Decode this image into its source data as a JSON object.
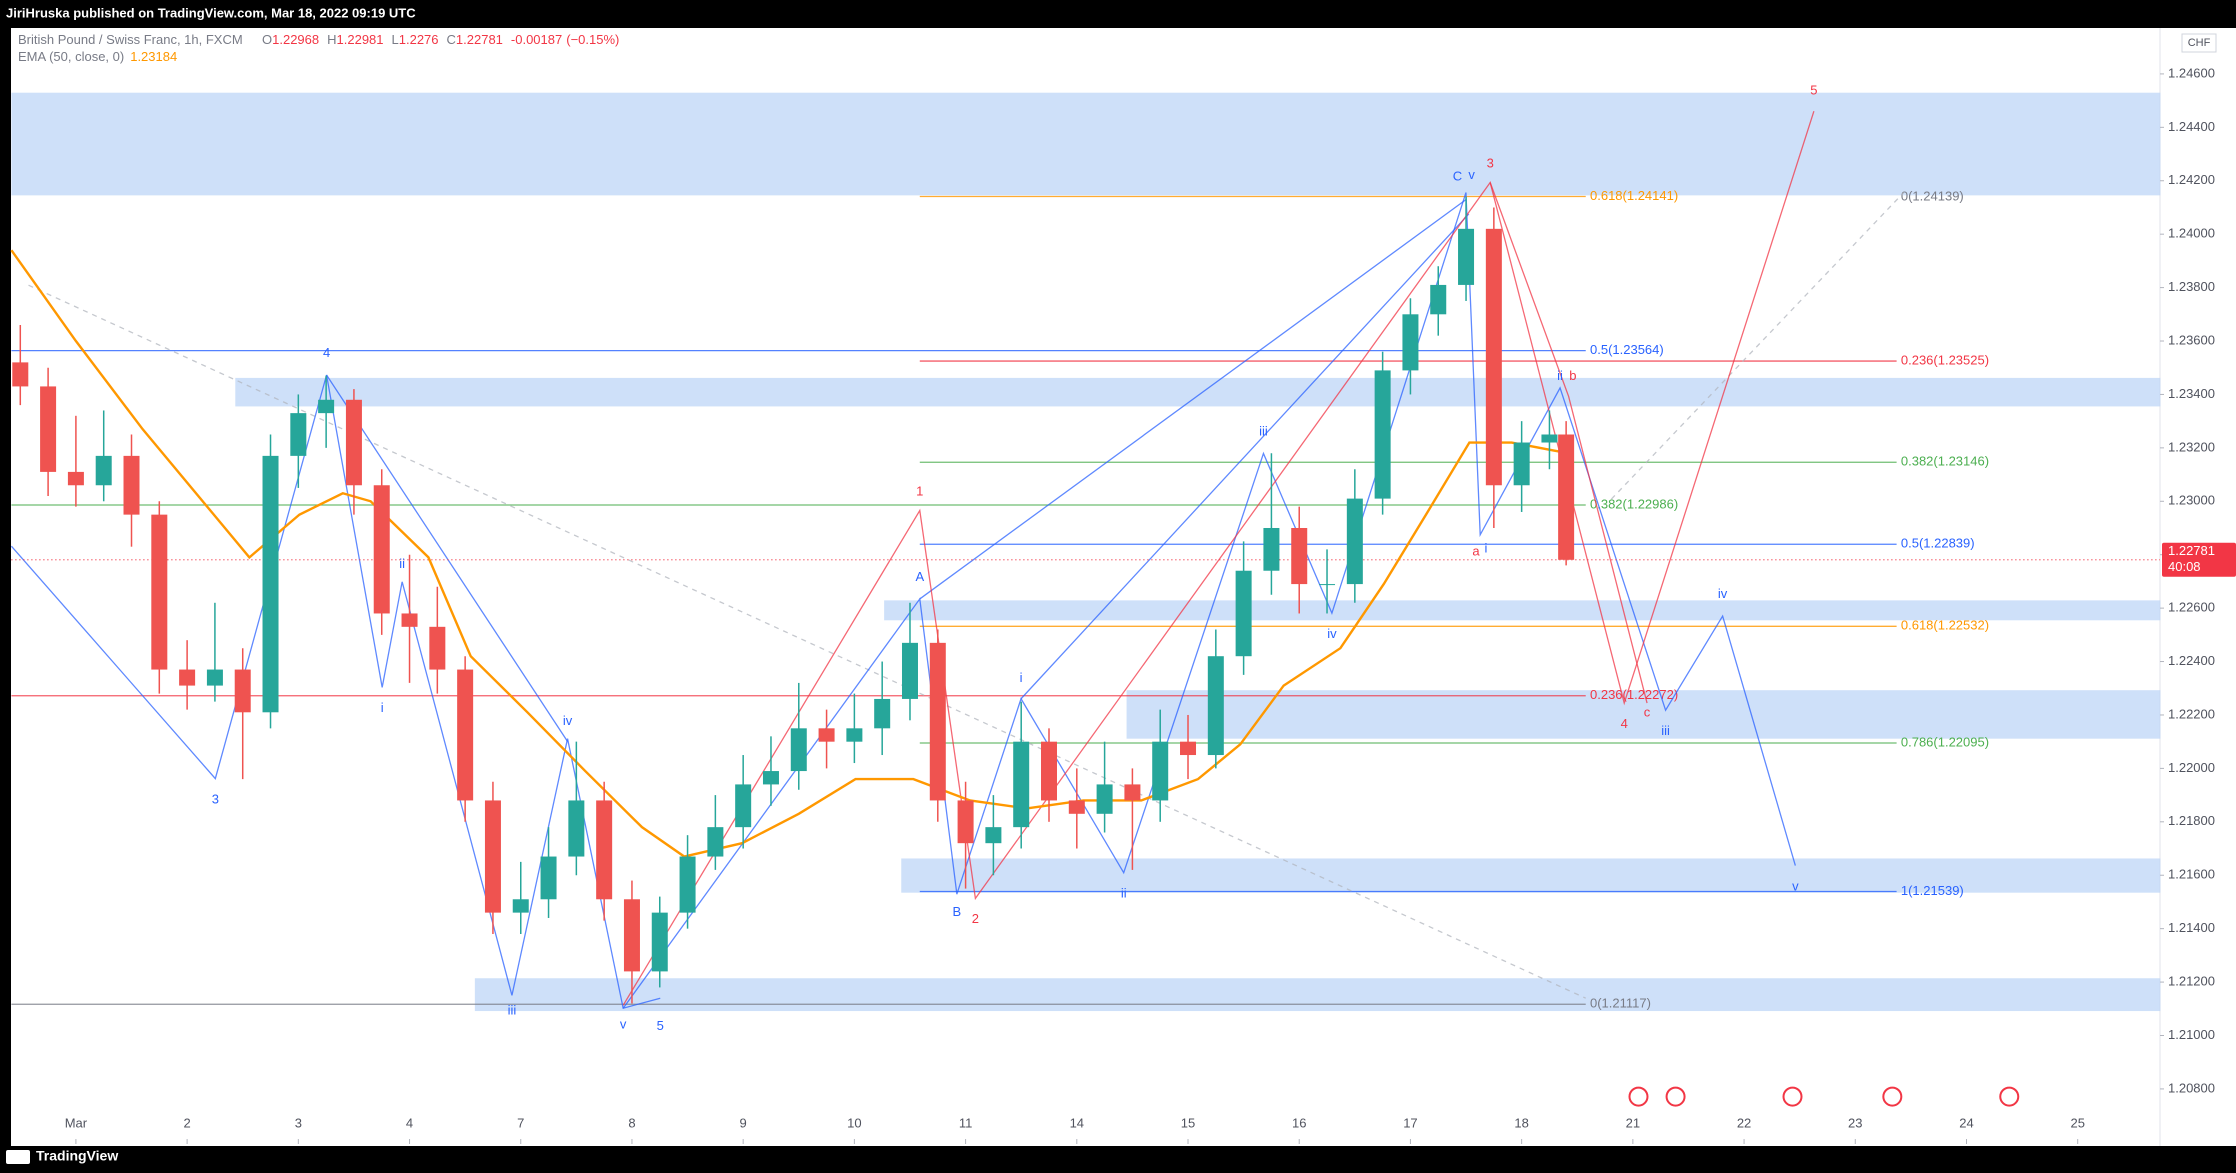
{
  "page": {
    "publisher": "JiriHruska published on TradingView.com, Mar 18, 2022 09:19 UTC",
    "brand": "TradingView",
    "currency": "CHF"
  },
  "chart_data": {
    "type": "candlestick",
    "title": "British Pound / Swiss Franc, 1h, FXCM",
    "legend": [
      {
        "label": "O",
        "value": 1.22968
      },
      {
        "label": "H",
        "value": 1.22981
      },
      {
        "label": "L",
        "value": 1.2276
      },
      {
        "label": "C",
        "value": 1.22781
      }
    ],
    "legend_close_text": "1.22781",
    "legend_low_text": "1.22760",
    "change": -0.00187,
    "change_pct": "(−0.15%)",
    "up_color": "#26a69a",
    "down_color": "#ef5350",
    "x": [
      -0.5,
      -0.25,
      0,
      0.25,
      0.5,
      0.75,
      1,
      1.25,
      1.5,
      1.75,
      2,
      2.25,
      2.5,
      2.75,
      3,
      3.25,
      3.5,
      3.75,
      4,
      4.25,
      4.5,
      4.75,
      5,
      5.25,
      5.5,
      5.75,
      6,
      6.25,
      6.5,
      6.75,
      7,
      7.25,
      7.5,
      7.75,
      8,
      8.25,
      8.5,
      8.75,
      9,
      9.25,
      9.5,
      9.75,
      10,
      10.25,
      10.5,
      10.75,
      11,
      11.25,
      11.5,
      11.75,
      12,
      12.25,
      12.5,
      12.75,
      13,
      13.25,
      13.4
    ],
    "open": [
      1.2352,
      1.2343,
      1.2311,
      1.2306,
      1.2317,
      1.2295,
      1.2237,
      1.2231,
      1.2237,
      1.2221,
      1.2317,
      1.2333,
      1.2338,
      1.2306,
      1.2258,
      1.2253,
      1.2237,
      1.2188,
      1.2146,
      1.2151,
      1.2167,
      1.2188,
      1.2151,
      1.2124,
      1.2146,
      1.2167,
      1.2178,
      1.2194,
      1.2199,
      1.2215,
      1.221,
      1.2215,
      1.2226,
      1.2247,
      1.2188,
      1.2172,
      1.2178,
      1.221,
      1.2188,
      1.2183,
      1.2194,
      1.2188,
      1.221,
      1.2205,
      1.2242,
      1.2274,
      1.229,
      1.2269,
      1.2269,
      1.2301,
      1.2349,
      1.237,
      1.2381,
      1.2402,
      1.2306,
      1.2322,
      1.2325
    ],
    "high": [
      1.2366,
      1.235,
      1.2332,
      1.2334,
      1.2325,
      1.23,
      1.2248,
      1.2262,
      1.2245,
      1.2325,
      1.234,
      1.2347,
      1.2342,
      1.2312,
      1.228,
      1.2268,
      1.2242,
      1.2195,
      1.2165,
      1.2178,
      1.221,
      1.2195,
      1.2158,
      1.2152,
      1.2175,
      1.219,
      1.2205,
      1.2212,
      1.2232,
      1.2222,
      1.2228,
      1.224,
      1.2262,
      1.2252,
      1.2195,
      1.219,
      1.2225,
      1.2215,
      1.22,
      1.221,
      1.22,
      1.2222,
      1.222,
      1.2252,
      1.2285,
      1.2318,
      1.2298,
      1.2282,
      1.2312,
      1.2356,
      1.2376,
      1.2388,
      1.2414,
      1.241,
      1.233,
      1.2334,
      1.233
    ],
    "low": [
      1.2336,
      1.2302,
      1.2298,
      1.23,
      1.2283,
      1.2228,
      1.2222,
      1.2225,
      1.2196,
      1.2215,
      1.2305,
      1.232,
      1.2295,
      1.225,
      1.2232,
      1.2228,
      1.218,
      1.2138,
      1.2138,
      1.2144,
      1.216,
      1.2143,
      1.2112,
      1.2118,
      1.214,
      1.2162,
      1.217,
      1.2186,
      1.2192,
      1.22,
      1.2202,
      1.2205,
      1.2218,
      1.218,
      1.2155,
      1.216,
      1.217,
      1.218,
      1.217,
      1.2176,
      1.2162,
      1.218,
      1.2196,
      1.22,
      1.2235,
      1.2265,
      1.2258,
      1.2258,
      1.2262,
      1.2295,
      1.234,
      1.2362,
      1.2375,
      1.229,
      1.2296,
      1.2312,
      1.2276
    ],
    "close": [
      1.2343,
      1.2311,
      1.2306,
      1.2317,
      1.2295,
      1.2237,
      1.2231,
      1.2237,
      1.2221,
      1.2317,
      1.2333,
      1.2338,
      1.2306,
      1.2258,
      1.2253,
      1.2237,
      1.2188,
      1.2146,
      1.2151,
      1.2167,
      1.2188,
      1.2151,
      1.2124,
      1.2146,
      1.2167,
      1.2178,
      1.2194,
      1.2199,
      1.2215,
      1.221,
      1.2215,
      1.2226,
      1.2247,
      1.2188,
      1.2172,
      1.2178,
      1.221,
      1.2188,
      1.2183,
      1.2194,
      1.2188,
      1.221,
      1.2205,
      1.2242,
      1.2274,
      1.229,
      1.2269,
      1.2269,
      1.2301,
      1.2349,
      1.237,
      1.2381,
      1.2402,
      1.2306,
      1.2322,
      1.2325,
      1.22781
    ],
    "ema": {
      "name": "EMA (50, close, 0)",
      "value": 1.23184,
      "color": "#ff9800",
      "x": [
        -0.58,
        0,
        0.6,
        1.24,
        1.56,
        2.01,
        2.4,
        2.65,
        3.17,
        3.55,
        4.06,
        4.58,
        5.09,
        5.47,
        5.99,
        6.5,
        7.01,
        7.53,
        8.04,
        8.55,
        9.06,
        9.58,
        10.09,
        10.47,
        10.86,
        11.37,
        11.76,
        12.14,
        12.53,
        12.91,
        13.29,
        13.42
      ],
      "values": [
        1.2394,
        1.236,
        1.2327,
        1.2295,
        1.2279,
        1.2295,
        1.2303,
        1.23,
        1.2279,
        1.2242,
        1.2221,
        1.2199,
        1.2178,
        1.2167,
        1.2172,
        1.2183,
        1.2196,
        1.2196,
        1.2188,
        1.2185,
        1.2188,
        1.2188,
        1.2196,
        1.2209,
        1.2231,
        1.2245,
        1.2269,
        1.2295,
        1.2322,
        1.2322,
        1.2319,
        1.2318
      ]
    },
    "price_tag": {
      "price": 1.22781,
      "text": "1.22781",
      "countdown": "40:08",
      "color": "#f23645"
    },
    "fib_levels": [
      {
        "price": 1.24141,
        "label": "0.618(1.24141)",
        "color": "#ff9800"
      },
      {
        "price": 1.24139,
        "label": "0(1.24139)",
        "color": "#787b86"
      },
      {
        "price": 1.23564,
        "label": "0.5(1.23564)",
        "color": "#2962ff"
      },
      {
        "price": 1.23525,
        "label": "0.236(1.23525)",
        "color": "#f23645"
      },
      {
        "price": 1.23146,
        "label": "0.382(1.23146)",
        "color": "#4caf50"
      },
      {
        "price": 1.22986,
        "label": "0.382(1.22986)",
        "color": "#4caf50"
      },
      {
        "price": 1.22839,
        "label": "0.5(1.22839)",
        "color": "#2962ff"
      },
      {
        "price": 1.22532,
        "label": "0.618(1.22532)",
        "color": "#ff9800"
      },
      {
        "price": 1.22272,
        "label": "0.236(1.22272)",
        "color": "#f23645"
      },
      {
        "price": 1.22095,
        "label": "0.786(1.22095)",
        "color": "#4caf50"
      },
      {
        "price": 1.21539,
        "label": "1(1.21539)",
        "color": "#2962ff"
      },
      {
        "price": 1.21117,
        "label": "0(1.21117)",
        "color": "#787b86"
      }
    ],
    "annotations": [
      {
        "text": "4",
        "color": "#2962ff"
      },
      {
        "text": "3",
        "color": "#2962ff"
      },
      {
        "text": "ii",
        "color": "#2962ff"
      },
      {
        "text": "i",
        "color": "#2962ff"
      },
      {
        "text": "iv",
        "color": "#2962ff"
      },
      {
        "text": "iii",
        "color": "#2962ff"
      },
      {
        "text": "v",
        "color": "#2962ff"
      },
      {
        "text": "5",
        "color": "#2962ff"
      },
      {
        "text": "1",
        "color": "#f23645"
      },
      {
        "text": "A",
        "color": "#2962ff"
      },
      {
        "text": "B",
        "color": "#2962ff"
      },
      {
        "text": "2",
        "color": "#f23645"
      },
      {
        "text": "i",
        "color": "#2962ff"
      },
      {
        "text": "ii",
        "color": "#2962ff"
      },
      {
        "text": "iii",
        "color": "#2962ff"
      },
      {
        "text": "iv",
        "color": "#2962ff"
      },
      {
        "text": "C",
        "color": "#2962ff"
      },
      {
        "text": "v",
        "color": "#2962ff"
      },
      {
        "text": "3",
        "color": "#f23645"
      },
      {
        "text": "ii",
        "color": "#2962ff"
      },
      {
        "text": "b",
        "color": "#f23645"
      },
      {
        "text": "a",
        "color": "#f23645"
      },
      {
        "text": "i",
        "color": "#2962ff"
      },
      {
        "text": "iv",
        "color": "#2962ff"
      },
      {
        "text": "c",
        "color": "#f23645"
      },
      {
        "text": "4",
        "color": "#f23645"
      },
      {
        "text": "iii",
        "color": "#2962ff"
      },
      {
        "text": "v",
        "color": "#2962ff"
      },
      {
        "text": "5",
        "color": "#f23645"
      }
    ],
    "xlim": [
      -0.58,
      18.74
    ],
    "ylim": [
      1.2062,
      1.2477
    ],
    "xticks": [
      {
        "value": 0,
        "label": "Mar"
      },
      {
        "value": 1,
        "label": "2"
      },
      {
        "value": 2,
        "label": "3"
      },
      {
        "value": 3,
        "label": "4"
      },
      {
        "value": 4,
        "label": "7"
      },
      {
        "value": 5,
        "label": "8"
      },
      {
        "value": 6,
        "label": "9"
      },
      {
        "value": 7,
        "label": "10"
      },
      {
        "value": 8,
        "label": "11"
      },
      {
        "value": 9,
        "label": "14"
      },
      {
        "value": 10,
        "label": "15"
      },
      {
        "value": 11,
        "label": "16"
      },
      {
        "value": 12,
        "label": "17"
      },
      {
        "value": 13,
        "label": "18"
      },
      {
        "value": 14,
        "label": "21"
      },
      {
        "value": 15,
        "label": "22"
      },
      {
        "value": 16,
        "label": "23"
      },
      {
        "value": 17,
        "label": "24"
      },
      {
        "value": 18,
        "label": "25"
      }
    ],
    "yticks": [
      {
        "value": 1.208,
        "label": "1.20800"
      },
      {
        "value": 1.21,
        "label": "1.21000"
      },
      {
        "value": 1.212,
        "label": "1.21200"
      },
      {
        "value": 1.214,
        "label": "1.21400"
      },
      {
        "value": 1.216,
        "label": "1.21600"
      },
      {
        "value": 1.218,
        "label": "1.21800"
      },
      {
        "value": 1.22,
        "label": "1.22000"
      },
      {
        "value": 1.222,
        "label": "1.22200"
      },
      {
        "value": 1.224,
        "label": "1.22400"
      },
      {
        "value": 1.226,
        "label": "1.22600"
      },
      {
        "value": 1.228,
        "label": "1.22800"
      },
      {
        "value": 1.23,
        "label": "1.23000"
      },
      {
        "value": 1.232,
        "label": "1.23200"
      },
      {
        "value": 1.234,
        "label": "1.23400"
      },
      {
        "value": 1.236,
        "label": "1.23600"
      },
      {
        "value": 1.238,
        "label": "1.23800"
      },
      {
        "value": 1.24,
        "label": "1.24000"
      },
      {
        "value": 1.242,
        "label": "1.24200"
      },
      {
        "value": 1.244,
        "label": "1.24400"
      },
      {
        "value": 1.246,
        "label": "1.24600"
      }
    ]
  }
}
